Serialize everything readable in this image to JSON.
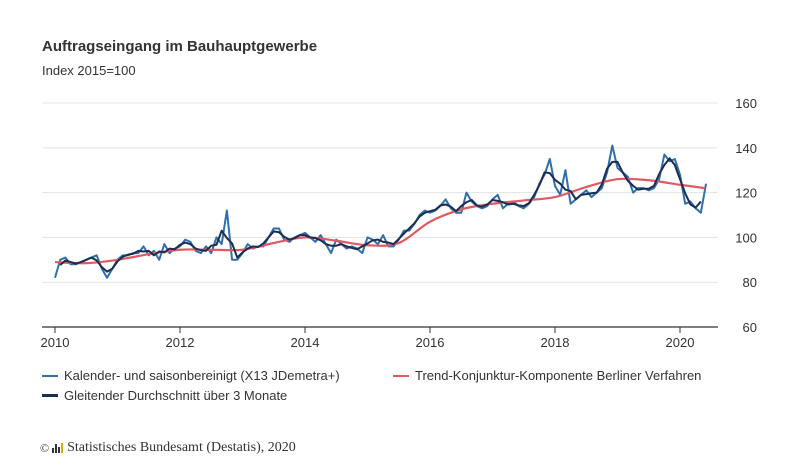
{
  "chart_data": {
    "type": "line",
    "title": "Auftragseingang im Bauhauptgewerbe",
    "subtitle": "Index 2015=100",
    "x_start": "2010-01",
    "x_frequency": "monthly",
    "xlim": [
      2010,
      2020.6
    ],
    "ylim": [
      60,
      160
    ],
    "x_ticks": [
      "2010",
      "2012",
      "2014",
      "2016",
      "2018",
      "2020"
    ],
    "y_ticks": [
      "60",
      "80",
      "100",
      "120",
      "140",
      "160"
    ],
    "grid": true,
    "y_axis_side": "right",
    "legend_placement": "bottom",
    "series": [
      {
        "name": "Kalender- und saisonbereinigt (X13 JDemetra+)",
        "color": "#2f6fad",
        "values": [
          82,
          90,
          91,
          88,
          88,
          89,
          90,
          91,
          92,
          86,
          82,
          86,
          90,
          92,
          92,
          93,
          93,
          96,
          92,
          94,
          90,
          97,
          93,
          95,
          96,
          99,
          98,
          94,
          93,
          96,
          93,
          100,
          97,
          112,
          90,
          90,
          93,
          97,
          95,
          96,
          96,
          100,
          104,
          104,
          99,
          98,
          100,
          101,
          102,
          100,
          98,
          101,
          97,
          93,
          99,
          97,
          95,
          96,
          95,
          93,
          100,
          99,
          97,
          101,
          96,
          96,
          99,
          103,
          103,
          106,
          110,
          112,
          111,
          112,
          114,
          117,
          113,
          111,
          111,
          120,
          116,
          114,
          113,
          114,
          117,
          119,
          113,
          115,
          116,
          114,
          113,
          115,
          118,
          124,
          128,
          135,
          123,
          119,
          130,
          115,
          117,
          119,
          121,
          118,
          120,
          122,
          129,
          141,
          131,
          129,
          127,
          120,
          122,
          122,
          121,
          122,
          126,
          137,
          134,
          135,
          128,
          115,
          116,
          113,
          111,
          124
        ]
      },
      {
        "name": "Gleitender Durchschnitt über 3 Monate",
        "color": "#1a2e50",
        "values": [
          null,
          87.7,
          89.7,
          89,
          88.3,
          89,
          90,
          91,
          89.7,
          86.7,
          84.7,
          86,
          89.3,
          91.3,
          92.3,
          92.7,
          94,
          93.7,
          94,
          92,
          93.7,
          93.3,
          95,
          94.7,
          96.7,
          97.7,
          97,
          95,
          94.3,
          94,
          96.3,
          96.7,
          103,
          99.7,
          97.3,
          91,
          93.3,
          95,
          96,
          95.7,
          97.3,
          100,
          102.7,
          102.3,
          100.3,
          99,
          99.7,
          101,
          101,
          100,
          99.7,
          98.7,
          97,
          96.3,
          96.3,
          97,
          96,
          95.3,
          94.7,
          96,
          97.3,
          98.7,
          99,
          98,
          97.7,
          97,
          99.3,
          101.7,
          104,
          106.3,
          109.3,
          111,
          111.7,
          112.3,
          114.3,
          114.7,
          113.7,
          111.7,
          114,
          115.7,
          116.7,
          114.3,
          113.7,
          114.7,
          116.7,
          116.3,
          115.7,
          114.7,
          115,
          114.3,
          114,
          115.3,
          119,
          123.3,
          129,
          128.7,
          125.7,
          124,
          121.3,
          120.7,
          117,
          119,
          119.3,
          119.7,
          120,
          123.7,
          130.7,
          133.7,
          133.7,
          129,
          125.3,
          123,
          121.3,
          121.7,
          121.7,
          123,
          128.3,
          132.3,
          135.3,
          132.3,
          126,
          119.7,
          114.7,
          113.3,
          116,
          null
        ]
      },
      {
        "name": "Trend-Konjunktur-Komponente Berliner Verfahren",
        "color": "#e05a63",
        "x": [
          2010,
          2010.5,
          2011,
          2011.5,
          2012,
          2012.5,
          2013,
          2013.5,
          2014,
          2014.5,
          2015,
          2015.5,
          2016,
          2016.5,
          2017,
          2017.5,
          2018,
          2018.5,
          2019,
          2019.5,
          2020,
          2020.4
        ],
        "values": [
          89,
          88.5,
          90,
          92.5,
          94.5,
          94.5,
          94.5,
          97.5,
          100,
          98.5,
          96.5,
          97.5,
          107,
          112.5,
          115,
          116.5,
          118,
          122.5,
          126,
          125.5,
          123.5,
          122
        ]
      }
    ]
  },
  "footer": {
    "copyright": "©",
    "text": "Statistisches Bundesamt (Destatis), 2020"
  }
}
